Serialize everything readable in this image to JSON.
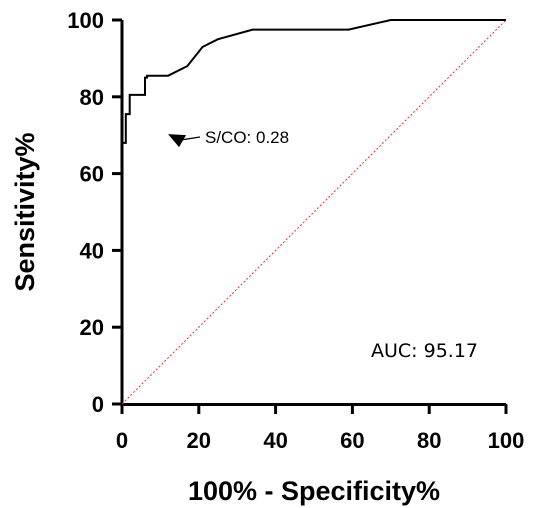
{
  "chart_data": {
    "type": "line",
    "title": "",
    "xlabel": "100% - Specificity%",
    "ylabel": "Sensitivity%",
    "xlim": [
      0,
      100
    ],
    "ylim": [
      0,
      100
    ],
    "xticks": [
      "0",
      "20",
      "40",
      "60",
      "80",
      "100"
    ],
    "yticks": [
      "0",
      "20",
      "40",
      "60",
      "80",
      "100"
    ],
    "grid": false,
    "legend": "none",
    "series": [
      {
        "style": "solid",
        "color": "#000000",
        "x": [
          0,
          0,
          1,
          1,
          2,
          2,
          3,
          3,
          6,
          6,
          6.5,
          6.5,
          12,
          17,
          21,
          25,
          34,
          59,
          70,
          100
        ],
        "y": [
          54,
          68,
          68,
          75.5,
          75.5,
          80.5,
          80.5,
          80.5,
          80.5,
          85,
          85,
          85.5,
          85.5,
          88,
          93,
          95,
          97.5,
          97.5,
          100,
          100
        ]
      },
      {
        "style": "dotted",
        "color": "#e8322e",
        "x": [
          0,
          100
        ],
        "y": [
          0,
          100
        ]
      }
    ],
    "annotations": [
      {
        "text": "S/CO: 0.28",
        "arrow_to": [
          6,
          76
        ]
      },
      {
        "text": "AUC: 95.17"
      }
    ]
  }
}
